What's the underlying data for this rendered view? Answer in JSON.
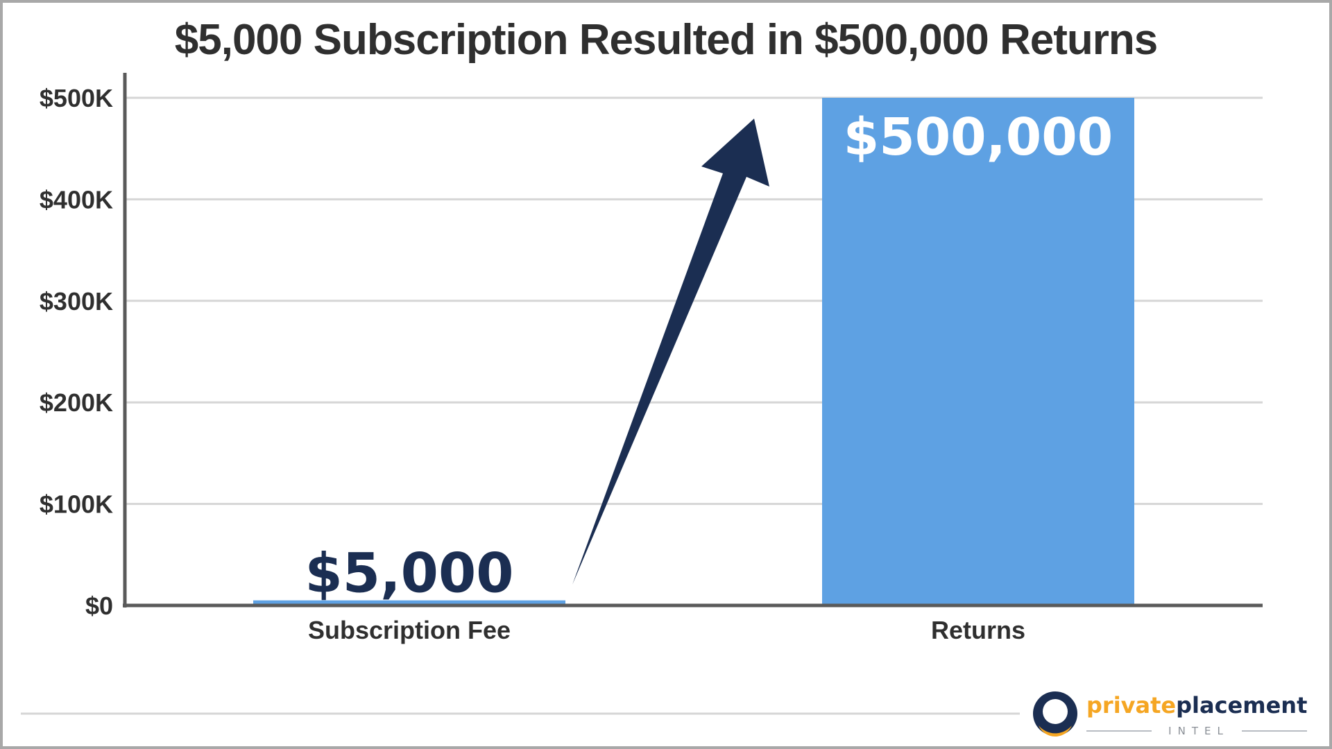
{
  "title": "$5,000 Subscription Resulted in $500,000 Returns",
  "colors": {
    "bar": "#5ea1e3",
    "arrow": "#1b2e52",
    "axis": "#5a5a5a",
    "grid": "#d6d6d6",
    "logo_orange": "#f5a623",
    "logo_navy": "#1b2e52"
  },
  "chart_data": {
    "type": "bar",
    "categories": [
      "Subscription Fee",
      "Returns"
    ],
    "values": [
      5000,
      500000
    ],
    "data_labels": [
      "$5,000",
      "$500,000"
    ],
    "ylim": [
      0,
      500000
    ],
    "yticks": [
      0,
      100000,
      200000,
      300000,
      400000,
      500000
    ],
    "ytick_labels": [
      "$0",
      "$100K",
      "$200K",
      "$300K",
      "$400K",
      "$500K"
    ],
    "grid": true,
    "annotation": "arrow from Subscription Fee up to Returns"
  },
  "logo": {
    "word1": "private",
    "word2": "placement",
    "sub": "INTEL",
    "icon": "ring-logo-icon"
  }
}
